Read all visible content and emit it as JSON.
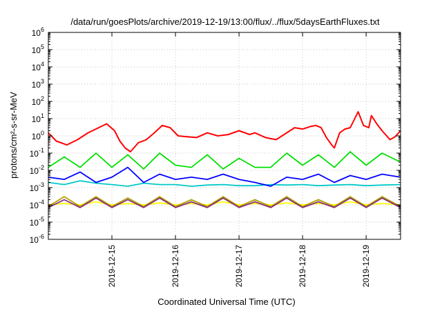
{
  "chart_data": {
    "type": "line",
    "title": "/data/run/goesPlots/archive/2019-12-19/13:00/flux/../flux/5daysEarthFluxes.txt",
    "xlabel": "Coordinated Universal Time (UTC)",
    "ylabel": "protons/cm²-s-sr-MeV",
    "yscale": "log",
    "ylim": [
      1e-06,
      1000000
    ],
    "y_tick_labels": [
      "10-6",
      "10-5",
      "10-4",
      "10-3",
      "10-2",
      "10-1",
      "100",
      "101",
      "102",
      "103",
      "104",
      "105",
      "106"
    ],
    "xlim": [
      "2019-12-14T00:00",
      "2019-12-19T13:00"
    ],
    "x_tick_labels": [
      "2019-12-15",
      "2019-12-16",
      "2019-12-17",
      "2019-12-18",
      "2019-12-19"
    ],
    "grid": true,
    "legend": "none",
    "series": [
      {
        "color": "#ff0000",
        "x": [
          "2019-12-14T00:00",
          "2019-12-14T03:00",
          "2019-12-14T07:00",
          "2019-12-14T11:00",
          "2019-12-14T15:00",
          "2019-12-14T19:00",
          "2019-12-14T22:00",
          "2019-12-15T01:00",
          "2019-12-15T03:00",
          "2019-12-15T05:00",
          "2019-12-15T07:00",
          "2019-12-15T10:00",
          "2019-12-15T13:00",
          "2019-12-15T16:00",
          "2019-12-15T19:00",
          "2019-12-15T22:00",
          "2019-12-16T01:00",
          "2019-12-16T04:00",
          "2019-12-16T08:00",
          "2019-12-16T12:00",
          "2019-12-16T16:00",
          "2019-12-16T20:00",
          "2019-12-17T00:00",
          "2019-12-17T04:00",
          "2019-12-17T06:00",
          "2019-12-17T10:00",
          "2019-12-17T14:00",
          "2019-12-17T18:00",
          "2019-12-17T21:00",
          "2019-12-18T00:00",
          "2019-12-18T03:00",
          "2019-12-18T05:00",
          "2019-12-18T07:00",
          "2019-12-18T09:00",
          "2019-12-18T11:00",
          "2019-12-18T12:00",
          "2019-12-18T14:00",
          "2019-12-18T16:00",
          "2019-12-18T18:00",
          "2019-12-18T21:00",
          "2019-12-18T23:00",
          "2019-12-19T01:00",
          "2019-12-19T02:00",
          "2019-12-19T04:00",
          "2019-12-19T06:00",
          "2019-12-19T09:00",
          "2019-12-19T11:00",
          "2019-12-19T13:00"
        ],
        "y": [
          1.5,
          0.5,
          0.3,
          0.6,
          1.5,
          3,
          5,
          2,
          0.5,
          0.2,
          0.12,
          0.4,
          0.6,
          1.5,
          4,
          3,
          1,
          0.9,
          0.8,
          1.5,
          1,
          1.2,
          2,
          1.2,
          1.5,
          0.8,
          0.6,
          1.5,
          3,
          2.5,
          3.5,
          4,
          3,
          0.8,
          0.3,
          0.2,
          1.5,
          2.5,
          3,
          25,
          4,
          3,
          15,
          5,
          2,
          0.6,
          0.9,
          2
        ]
      },
      {
        "color": "#00e000",
        "x": [
          "2019-12-14T00:00",
          "2019-12-14T06:00",
          "2019-12-14T12:00",
          "2019-12-14T18:00",
          "2019-12-15T00:00",
          "2019-12-15T06:00",
          "2019-12-15T12:00",
          "2019-12-15T18:00",
          "2019-12-16T00:00",
          "2019-12-16T06:00",
          "2019-12-16T12:00",
          "2019-12-16T18:00",
          "2019-12-17T00:00",
          "2019-12-17T06:00",
          "2019-12-17T12:00",
          "2019-12-17T18:00",
          "2019-12-18T00:00",
          "2019-12-18T06:00",
          "2019-12-18T12:00",
          "2019-12-18T18:00",
          "2019-12-19T00:00",
          "2019-12-19T06:00",
          "2019-12-19T13:00"
        ],
        "y": [
          0.015,
          0.06,
          0.015,
          0.1,
          0.015,
          0.08,
          0.012,
          0.1,
          0.02,
          0.015,
          0.08,
          0.012,
          0.05,
          0.015,
          0.015,
          0.1,
          0.02,
          0.08,
          0.015,
          0.12,
          0.02,
          0.1,
          0.03
        ]
      },
      {
        "color": "#00c8c8",
        "x": [
          "2019-12-14T00:00",
          "2019-12-14T06:00",
          "2019-12-14T12:00",
          "2019-12-14T18:00",
          "2019-12-15T00:00",
          "2019-12-15T06:00",
          "2019-12-15T12:00",
          "2019-12-15T18:00",
          "2019-12-16T00:00",
          "2019-12-16T06:00",
          "2019-12-16T12:00",
          "2019-12-16T18:00",
          "2019-12-17T00:00",
          "2019-12-17T06:00",
          "2019-12-17T12:00",
          "2019-12-17T18:00",
          "2019-12-18T00:00",
          "2019-12-18T06:00",
          "2019-12-18T12:00",
          "2019-12-18T18:00",
          "2019-12-19T00:00",
          "2019-12-19T06:00",
          "2019-12-19T13:00"
        ],
        "y": [
          0.002,
          0.0015,
          0.0025,
          0.0018,
          0.0015,
          0.0012,
          0.0018,
          0.0015,
          0.0015,
          0.0012,
          0.0014,
          0.0015,
          0.0013,
          0.0013,
          0.0015,
          0.0014,
          0.0015,
          0.0013,
          0.0014,
          0.0015,
          0.0013,
          0.0014,
          0.0015
        ]
      },
      {
        "color": "#0000ff",
        "x": [
          "2019-12-14T00:00",
          "2019-12-14T06:00",
          "2019-12-14T12:00",
          "2019-12-14T18:00",
          "2019-12-15T00:00",
          "2019-12-15T06:00",
          "2019-12-15T12:00",
          "2019-12-15T18:00",
          "2019-12-16T00:00",
          "2019-12-16T06:00",
          "2019-12-16T12:00",
          "2019-12-16T18:00",
          "2019-12-17T00:00",
          "2019-12-17T06:00",
          "2019-12-17T12:00",
          "2019-12-17T18:00",
          "2019-12-18T00:00",
          "2019-12-18T06:00",
          "2019-12-18T12:00",
          "2019-12-18T18:00",
          "2019-12-19T00:00",
          "2019-12-19T06:00",
          "2019-12-19T13:00"
        ],
        "y": [
          0.004,
          0.003,
          0.008,
          0.002,
          0.004,
          0.015,
          0.002,
          0.006,
          0.003,
          0.004,
          0.003,
          0.006,
          0.003,
          0.002,
          0.0012,
          0.004,
          0.003,
          0.006,
          0.002,
          0.005,
          0.003,
          0.006,
          0.004
        ]
      },
      {
        "color": "#ffff00",
        "x": [
          "2019-12-14T00:00",
          "2019-12-14T06:00",
          "2019-12-14T12:00",
          "2019-12-14T18:00",
          "2019-12-15T00:00",
          "2019-12-15T06:00",
          "2019-12-15T12:00",
          "2019-12-15T18:00",
          "2019-12-16T00:00",
          "2019-12-16T06:00",
          "2019-12-16T12:00",
          "2019-12-16T18:00",
          "2019-12-17T00:00",
          "2019-12-17T06:00",
          "2019-12-17T12:00",
          "2019-12-17T18:00",
          "2019-12-18T00:00",
          "2019-12-18T06:00",
          "2019-12-18T12:00",
          "2019-12-18T18:00",
          "2019-12-19T00:00",
          "2019-12-19T06:00",
          "2019-12-19T13:00"
        ],
        "y": [
          0.0001,
          0.00012,
          0.0001,
          0.00015,
          0.0001,
          0.00012,
          0.0001,
          0.00013,
          0.0001,
          0.00012,
          0.0001,
          0.00015,
          0.0001,
          0.00012,
          0.0001,
          0.00013,
          0.0001,
          0.00012,
          0.0001,
          0.00015,
          0.0001,
          0.00012,
          0.0001
        ]
      },
      {
        "color": "#b0a000",
        "x": [
          "2019-12-14T00:00",
          "2019-12-14T06:00",
          "2019-12-14T12:00",
          "2019-12-14T18:00",
          "2019-12-15T00:00",
          "2019-12-15T06:00",
          "2019-12-15T12:00",
          "2019-12-15T18:00",
          "2019-12-16T00:00",
          "2019-12-16T06:00",
          "2019-12-16T12:00",
          "2019-12-16T18:00",
          "2019-12-17T00:00",
          "2019-12-17T06:00",
          "2019-12-17T12:00",
          "2019-12-17T18:00",
          "2019-12-18T00:00",
          "2019-12-18T06:00",
          "2019-12-18T12:00",
          "2019-12-18T18:00",
          "2019-12-19T00:00",
          "2019-12-19T06:00",
          "2019-12-19T13:00"
        ],
        "y": [
          8e-05,
          0.0003,
          8e-05,
          0.0003,
          8e-05,
          0.00025,
          8e-05,
          0.0003,
          8e-05,
          0.0002,
          8e-05,
          0.0003,
          8e-05,
          0.0002,
          8e-05,
          0.0003,
          8e-05,
          0.0002,
          8e-05,
          0.0003,
          8e-05,
          0.0003,
          8e-05
        ]
      },
      {
        "color": "#8b2d7a",
        "x": [
          "2019-12-14T00:00",
          "2019-12-14T06:00",
          "2019-12-14T12:00",
          "2019-12-14T18:00",
          "2019-12-15T00:00",
          "2019-12-15T06:00",
          "2019-12-15T12:00",
          "2019-12-15T18:00",
          "2019-12-16T00:00",
          "2019-12-16T06:00",
          "2019-12-16T12:00",
          "2019-12-16T18:00",
          "2019-12-17T00:00",
          "2019-12-17T06:00",
          "2019-12-17T12:00",
          "2019-12-17T18:00",
          "2019-12-18T00:00",
          "2019-12-18T06:00",
          "2019-12-18T12:00",
          "2019-12-18T18:00",
          "2019-12-19T00:00",
          "2019-12-19T06:00",
          "2019-12-19T13:00"
        ],
        "y": [
          7e-05,
          0.0002,
          7e-05,
          0.00025,
          7e-05,
          0.0002,
          7e-05,
          0.00025,
          7e-05,
          0.00015,
          7e-05,
          0.00025,
          7e-05,
          0.00015,
          7e-05,
          0.00025,
          7e-05,
          0.00015,
          7e-05,
          0.00025,
          7e-05,
          0.00025,
          7e-05
        ]
      }
    ]
  }
}
